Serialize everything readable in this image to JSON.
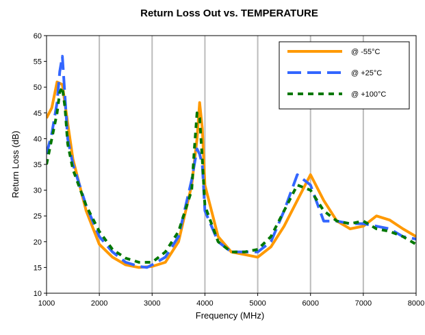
{
  "chart_data": {
    "type": "line",
    "title": "Return Loss Out vs. TEMPERATURE",
    "xlabel": "Frequency (MHz)",
    "ylabel": "Return Loss (dB)",
    "xlim": [
      1000,
      8000
    ],
    "ylim": [
      10,
      60
    ],
    "x_ticks": [
      1000,
      2000,
      3000,
      4000,
      5000,
      6000,
      7000,
      8000
    ],
    "y_ticks": [
      10,
      15,
      20,
      25,
      30,
      35,
      40,
      45,
      50,
      55,
      60
    ],
    "grid": "vertical",
    "legend_position": "top-right",
    "series": [
      {
        "name": "@ -55°C",
        "color": "#FF9900",
        "style": "solid",
        "x": [
          1000,
          1100,
          1200,
          1300,
          1400,
          1500,
          1750,
          2000,
          2250,
          2500,
          2750,
          3000,
          3250,
          3500,
          3750,
          3850,
          3900,
          3950,
          4000,
          4250,
          4500,
          4750,
          5000,
          5250,
          5500,
          5750,
          6000,
          6250,
          6500,
          6750,
          7000,
          7250,
          7500,
          7750,
          8000
        ],
        "y": [
          44,
          46,
          51,
          50.5,
          43,
          36,
          26,
          19.5,
          17,
          15.5,
          15,
          15.2,
          16,
          20,
          31,
          40,
          47,
          42,
          31,
          21,
          18,
          17.5,
          17,
          19,
          23,
          28,
          33,
          28,
          24,
          22.5,
          23,
          25,
          24.2,
          22.5,
          21
        ]
      },
      {
        "name": "@ +25°C",
        "color": "#3366FF",
        "style": "dash",
        "x": [
          1000,
          1100,
          1200,
          1250,
          1300,
          1350,
          1400,
          1500,
          1750,
          2000,
          2250,
          2500,
          2750,
          2900,
          3000,
          3250,
          3500,
          3750,
          3850,
          3900,
          3950,
          4000,
          4250,
          4500,
          4750,
          5000,
          5250,
          5500,
          5750,
          6000,
          6250,
          6500,
          6750,
          7000,
          7250,
          7500,
          7750,
          8000
        ],
        "y": [
          37,
          41,
          47,
          53,
          56,
          48,
          40,
          35,
          27,
          21,
          18,
          16,
          15.2,
          15,
          15.5,
          17,
          21,
          32,
          38,
          37,
          35,
          26,
          20,
          18,
          18,
          18,
          20,
          26,
          33,
          31,
          24,
          24,
          23.5,
          23.5,
          23,
          22.5,
          21,
          20.5
        ]
      },
      {
        "name": "@ +100°C",
        "color": "#007700",
        "style": "dot",
        "x": [
          1000,
          1100,
          1200,
          1250,
          1300,
          1350,
          1400,
          1500,
          1750,
          2000,
          2250,
          2500,
          2750,
          3000,
          3250,
          3500,
          3750,
          3800,
          3850,
          3900,
          3950,
          4000,
          4250,
          4500,
          4750,
          5000,
          5250,
          5500,
          5750,
          6000,
          6250,
          6500,
          6750,
          7000,
          7250,
          7500,
          7750,
          8000
        ],
        "y": [
          35,
          40,
          45,
          49,
          50,
          46,
          39,
          34,
          27,
          22,
          18.5,
          16.8,
          16,
          16,
          18,
          22,
          30,
          38,
          45,
          44,
          36,
          27,
          20,
          18,
          18,
          18.5,
          21,
          26,
          31,
          30,
          26,
          24,
          23.5,
          24,
          22.5,
          22,
          21,
          19.5
        ]
      }
    ]
  }
}
